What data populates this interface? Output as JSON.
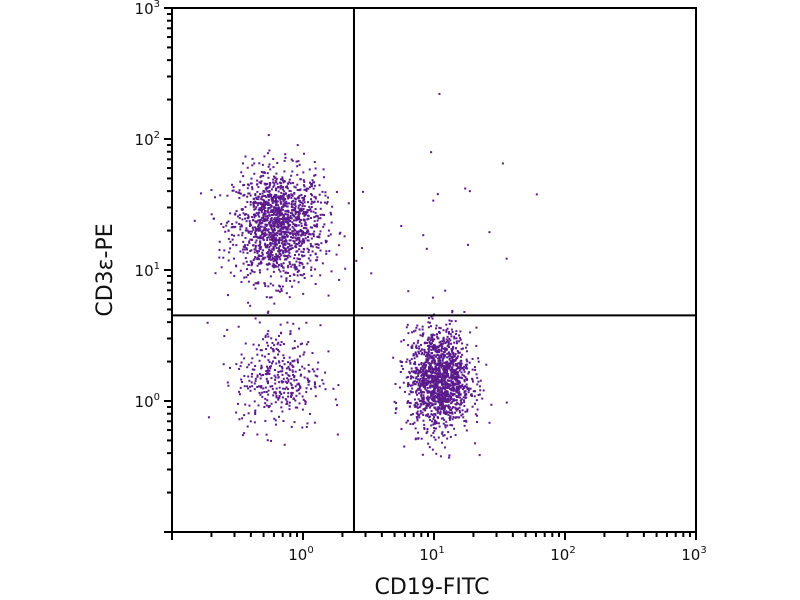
{
  "chart_data": {
    "type": "scatter",
    "title": "",
    "xlabel": "CD19-FITC",
    "ylabel": "CD3ε-PE",
    "xscale": "log",
    "yscale": "log",
    "xlim": [
      0.1,
      1000
    ],
    "ylim": [
      0.1,
      1000
    ],
    "x_tick_labels": [
      {
        "value": 1,
        "base": "10",
        "exp": "0"
      },
      {
        "value": 10,
        "base": "10",
        "exp": "1"
      },
      {
        "value": 100,
        "base": "10",
        "exp": "2"
      },
      {
        "value": 1000,
        "base": "10",
        "exp": "3"
      }
    ],
    "y_tick_labels": [
      {
        "value": 1,
        "base": "10",
        "exp": "0"
      },
      {
        "value": 10,
        "base": "10",
        "exp": "1"
      },
      {
        "value": 100,
        "base": "10",
        "exp": "2"
      },
      {
        "value": 1000,
        "base": "10",
        "exp": "3"
      }
    ],
    "grid": false,
    "quadrant_gates": {
      "x": 2.45,
      "y": 4.5
    },
    "point_color": "#5b1a8c",
    "populations": [
      {
        "quadrant": "upper-left",
        "x_center": 0.65,
        "y_center": 22,
        "x_spread_decades": 0.17,
        "y_spread_decades": 0.21,
        "count": 1500
      },
      {
        "quadrant": "lower-left",
        "x_center": 0.65,
        "y_center": 1.5,
        "x_spread_decades": 0.16,
        "y_spread_decades": 0.2,
        "count": 380
      },
      {
        "quadrant": "lower-right",
        "x_center": 11,
        "y_center": 1.45,
        "x_spread_decades": 0.12,
        "y_spread_decades": 0.19,
        "count": 1500
      },
      {
        "quadrant": "upper-right",
        "x_center": 10,
        "y_center": 20,
        "x_spread_decades": 0.4,
        "y_spread_decades": 0.4,
        "count": 20
      }
    ]
  }
}
